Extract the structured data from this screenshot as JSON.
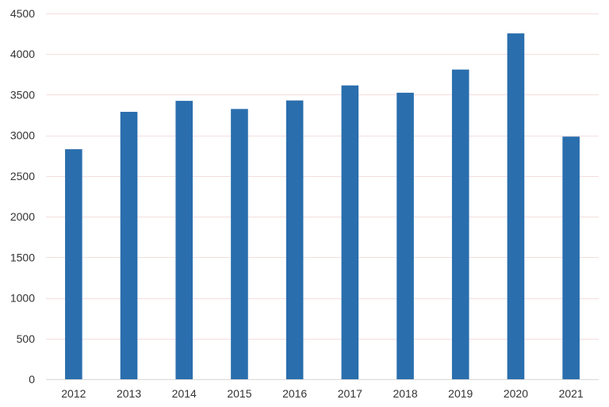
{
  "chart_data": {
    "type": "bar",
    "title": "",
    "xlabel": "",
    "ylabel": "",
    "categories": [
      "2012",
      "2013",
      "2014",
      "2015",
      "2016",
      "2017",
      "2018",
      "2019",
      "2020",
      "2021"
    ],
    "values": [
      2830,
      3290,
      3425,
      3325,
      3430,
      3615,
      3525,
      3810,
      4255,
      2985
    ],
    "ylim": [
      0,
      4500
    ],
    "yticks": [
      0,
      500,
      1000,
      1500,
      2000,
      2500,
      3000,
      3500,
      4000,
      4500
    ],
    "grid": true,
    "legend": "none",
    "colors": {
      "bar": "#2a6ead",
      "grid": "#f4dede",
      "axis": "#d9d9d9",
      "text": "#333333"
    }
  }
}
